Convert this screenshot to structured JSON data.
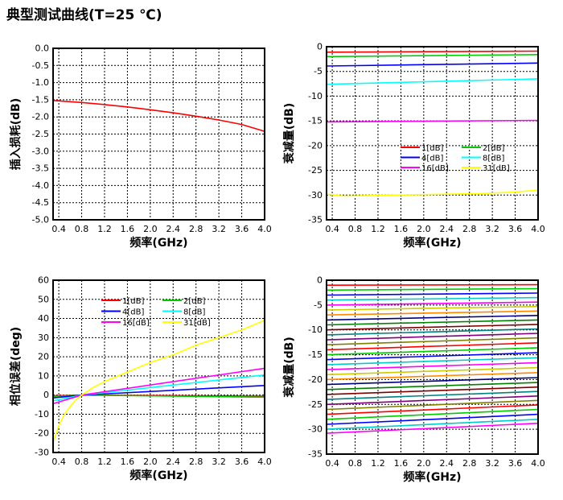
{
  "page": {
    "title": "典型测试曲线(T=25 ℃)"
  },
  "chart_data": [
    {
      "id": "insertion-loss",
      "type": "line",
      "xlabel": "频率(GHz)",
      "ylabel": "插入损耗(dB)",
      "xlim": [
        0.3,
        4.0
      ],
      "ylim": [
        -5.0,
        0.0
      ],
      "xticks": [
        0.4,
        0.8,
        1.2,
        1.6,
        2.0,
        2.4,
        2.8,
        3.2,
        3.6,
        4.0
      ],
      "xtick_labels": [
        "0.4",
        "0.8",
        "1.2",
        "1.6",
        "2.0",
        "2.4",
        "2.8",
        "3.2",
        "3.6",
        "4.0"
      ],
      "yticks": [
        0.0,
        -0.5,
        -1.0,
        -1.5,
        -2.0,
        -2.5,
        -3.0,
        -3.5,
        -4.0,
        -4.5,
        -5.0
      ],
      "ytick_labels": [
        "0.0",
        "-0.5",
        "-1.0",
        "-1.5",
        "-2.0",
        "-2.5",
        "-3.0",
        "-3.5",
        "-4.0",
        "-4.5",
        "-5.0"
      ],
      "grid": true,
      "series": [
        {
          "color": "#ff0000",
          "x": [
            0.3,
            0.8,
            1.2,
            1.6,
            2.0,
            2.4,
            2.8,
            3.2,
            3.6,
            4.0
          ],
          "y": [
            -1.52,
            -1.58,
            -1.64,
            -1.71,
            -1.79,
            -1.88,
            -1.98,
            -2.09,
            -2.22,
            -2.42
          ]
        }
      ]
    },
    {
      "id": "attenuation-states",
      "type": "line",
      "xlabel": "频率(GHz)",
      "ylabel": "衰减量(dB)",
      "xlim": [
        0.3,
        4.0
      ],
      "ylim": [
        -35,
        0
      ],
      "xticks": [
        0.4,
        0.8,
        1.2,
        1.6,
        2.0,
        2.4,
        2.8,
        3.2,
        3.6,
        4.0
      ],
      "xtick_labels": [
        "0.4",
        "0.8",
        "1.2",
        "1.6",
        "2.0",
        "2.4",
        "2.8",
        "3.2",
        "3.6",
        "4.0"
      ],
      "yticks": [
        0,
        -5,
        -10,
        -15,
        -20,
        -25,
        -30,
        -35
      ],
      "ytick_labels": [
        "0",
        "-5",
        "-10",
        "-15",
        "-20",
        "-25",
        "-30",
        "-35"
      ],
      "grid": true,
      "legend_position": "center-right",
      "series": [
        {
          "name": "1[dB]",
          "color": "#ff0000",
          "x": [
            0.3,
            4.0
          ],
          "y": [
            -1.1,
            -0.9
          ]
        },
        {
          "name": "2[dB]",
          "color": "#00cc00",
          "x": [
            0.3,
            4.0
          ],
          "y": [
            -2.0,
            -1.6
          ]
        },
        {
          "name": "4[dB]",
          "color": "#0000ff",
          "x": [
            0.3,
            4.0
          ],
          "y": [
            -3.9,
            -3.3
          ]
        },
        {
          "name": "8[dB]",
          "color": "#00ffff",
          "x": [
            0.3,
            4.0
          ],
          "y": [
            -7.6,
            -6.5
          ]
        },
        {
          "name": "16[dB]",
          "color": "#ff00ff",
          "x": [
            0.3,
            4.0
          ],
          "y": [
            -15.2,
            -14.9
          ]
        },
        {
          "name": "31[dB]",
          "color": "#ffff00",
          "x": [
            0.3,
            0.6,
            1.0,
            2.0,
            3.0,
            3.6,
            4.0
          ],
          "y": [
            -29.8,
            -30.2,
            -30.1,
            -29.9,
            -29.7,
            -29.4,
            -29.0
          ]
        }
      ]
    },
    {
      "id": "phase-error",
      "type": "line",
      "xlabel": "频率(GHz)",
      "ylabel": "相位误差(deg)",
      "xlim": [
        0.3,
        4.0
      ],
      "ylim": [
        -30,
        60
      ],
      "xticks": [
        0.4,
        0.8,
        1.2,
        1.6,
        2.0,
        2.4,
        2.8,
        3.2,
        3.6,
        4.0
      ],
      "xtick_labels": [
        "0.4",
        "0.8",
        "1.2",
        "1.6",
        "2.0",
        "2.4",
        "2.8",
        "3.2",
        "3.6",
        "4.0"
      ],
      "yticks": [
        60,
        50,
        40,
        30,
        20,
        10,
        0,
        -10,
        -20,
        -30
      ],
      "ytick_labels": [
        "60",
        "50",
        "40",
        "30",
        "20",
        "10",
        "0",
        "-10",
        "-20",
        "-30"
      ],
      "grid": true,
      "legend_position": "top",
      "series": [
        {
          "name": "1[dB]",
          "color": "#ff0000",
          "x": [
            0.3,
            0.8,
            4.0
          ],
          "y": [
            -0.4,
            0.0,
            -0.6
          ]
        },
        {
          "name": "2[dB]",
          "color": "#00cc00",
          "x": [
            0.3,
            0.8,
            4.0
          ],
          "y": [
            -0.7,
            0.0,
            -1.1
          ]
        },
        {
          "name": "4[dB]",
          "color": "#0000ff",
          "x": [
            0.3,
            0.8,
            4.0
          ],
          "y": [
            -1.5,
            0.0,
            5.0
          ]
        },
        {
          "name": "8[dB]",
          "color": "#00ffff",
          "x": [
            0.3,
            0.8,
            4.0
          ],
          "y": [
            -3.0,
            0.0,
            10.5
          ]
        },
        {
          "name": "16[dB]",
          "color": "#ff00ff",
          "x": [
            0.3,
            0.8,
            4.0
          ],
          "y": [
            -4.5,
            0.0,
            14.0
          ]
        },
        {
          "name": "31[dB]",
          "color": "#ffff00",
          "x": [
            0.3,
            0.4,
            0.5,
            0.6,
            0.7,
            0.8,
            1.0,
            1.2,
            1.6,
            2.0,
            2.4,
            2.8,
            3.2,
            3.6,
            4.0
          ],
          "y": [
            -25,
            -16,
            -10,
            -6,
            -2.5,
            0,
            4,
            7,
            12,
            17,
            21,
            26,
            30,
            34,
            39
          ]
        }
      ]
    },
    {
      "id": "attenuation-all-states",
      "type": "line",
      "xlabel": "频率(GHz)",
      "ylabel": "衰减量(dB)",
      "xlim": [
        0.3,
        4.0
      ],
      "ylim": [
        -35,
        0
      ],
      "xticks": [
        0.4,
        0.8,
        1.2,
        1.6,
        2.0,
        2.4,
        2.8,
        3.2,
        3.6,
        4.0
      ],
      "xtick_labels": [
        "0.4",
        "0.8",
        "1.2",
        "1.6",
        "2.0",
        "2.4",
        "2.8",
        "3.2",
        "3.6",
        "4.0"
      ],
      "yticks": [
        0,
        -5,
        -10,
        -15,
        -20,
        -25,
        -30,
        -35
      ],
      "ytick_labels": [
        "0",
        "-5",
        "-10",
        "-15",
        "-20",
        "-25",
        "-30",
        "-35"
      ],
      "grid": true,
      "series_start_y": [
        -1.0,
        -2.0,
        -3.0,
        -4.0,
        -5.0,
        -6.0,
        -7.0,
        -8.0,
        -9.0,
        -10.0,
        -11.0,
        -12.0,
        -13.0,
        -14.0,
        -15.0,
        -16.0,
        -17.0,
        -18.0,
        -19.0,
        -20.0,
        -21.0,
        -22.0,
        -23.0,
        -24.0,
        -25.0,
        -26.0,
        -27.0,
        -28.0,
        -29.0,
        -30.0,
        -30.8
      ],
      "series_end_y": [
        -0.9,
        -1.7,
        -2.6,
        -3.5,
        -4.4,
        -5.3,
        -6.2,
        -7.1,
        -8.0,
        -8.9,
        -9.8,
        -10.7,
        -11.6,
        -12.6,
        -13.6,
        -14.6,
        -15.6,
        -16.6,
        -17.6,
        -18.6,
        -19.6,
        -20.6,
        -21.5,
        -22.4,
        -23.3,
        -24.2,
        -25.1,
        -26.0,
        -27.0,
        -28.0,
        -28.8
      ],
      "series_colors": [
        "#ff0000",
        "#00cc00",
        "#0000ff",
        "#00cccc",
        "#ff00ff",
        "#cccc00",
        "#ff8800",
        "#000080",
        "#008000",
        "#800000",
        "#008080",
        "#800080",
        "#808000",
        "#ff0000",
        "#00cc00",
        "#0000ff",
        "#00cccc",
        "#ff00ff",
        "#cccc00",
        "#ff8800",
        "#000080",
        "#008000",
        "#800000",
        "#008080",
        "#800080",
        "#808000",
        "#ff0000",
        "#00cc00",
        "#0000ff",
        "#00cccc",
        "#ff00ff"
      ]
    }
  ]
}
